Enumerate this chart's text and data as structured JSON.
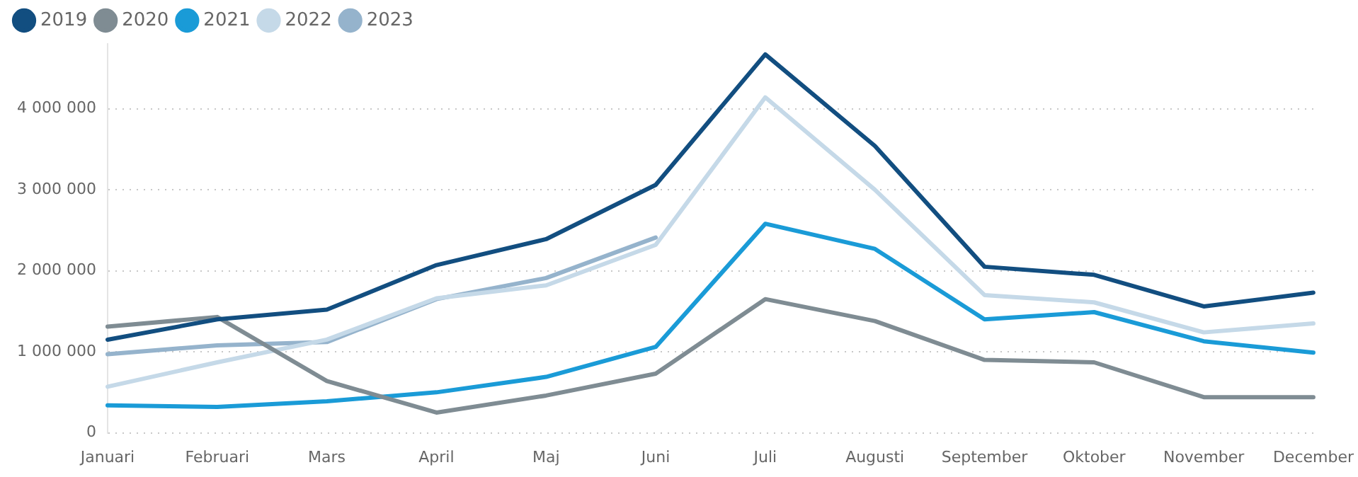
{
  "chart_data": {
    "type": "line",
    "categories": [
      "Januari",
      "Februari",
      "Mars",
      "April",
      "Maj",
      "Juni",
      "Juli",
      "Augusti",
      "September",
      "Oktober",
      "November",
      "December"
    ],
    "series": [
      {
        "name": "2019",
        "color": "#124e80",
        "values": [
          1150000,
          1400000,
          1520000,
          2070000,
          2390000,
          3060000,
          4670000,
          3540000,
          2050000,
          1950000,
          1560000,
          1730000
        ]
      },
      {
        "name": "2020",
        "color": "#7f8c93",
        "values": [
          1310000,
          1430000,
          640000,
          250000,
          460000,
          730000,
          1650000,
          1380000,
          900000,
          870000,
          440000,
          440000
        ]
      },
      {
        "name": "2021",
        "color": "#1a9bd7",
        "values": [
          340000,
          320000,
          390000,
          500000,
          690000,
          1060000,
          2580000,
          2270000,
          1400000,
          1490000,
          1130000,
          990000
        ]
      },
      {
        "name": "2022",
        "color": "#c5d9e8",
        "values": [
          570000,
          870000,
          1150000,
          1660000,
          1820000,
          2320000,
          4140000,
          3000000,
          1700000,
          1610000,
          1240000,
          1350000
        ]
      },
      {
        "name": "2023",
        "color": "#95b3cc",
        "values": [
          970000,
          1080000,
          1120000,
          1650000,
          1910000,
          2410000,
          null,
          null,
          null,
          null,
          null,
          null
        ]
      }
    ],
    "ylim": [
      0,
      4800000
    ],
    "yticks": [
      {
        "value": 0,
        "label": "0"
      },
      {
        "value": 1000000,
        "label": "1 000 000"
      },
      {
        "value": 2000000,
        "label": "2 000 000"
      },
      {
        "value": 3000000,
        "label": "3 000 000"
      },
      {
        "value": 4000000,
        "label": "4 000 000"
      }
    ],
    "grid": "y",
    "legend": "top left",
    "marker": "none",
    "line_style": "solid"
  }
}
